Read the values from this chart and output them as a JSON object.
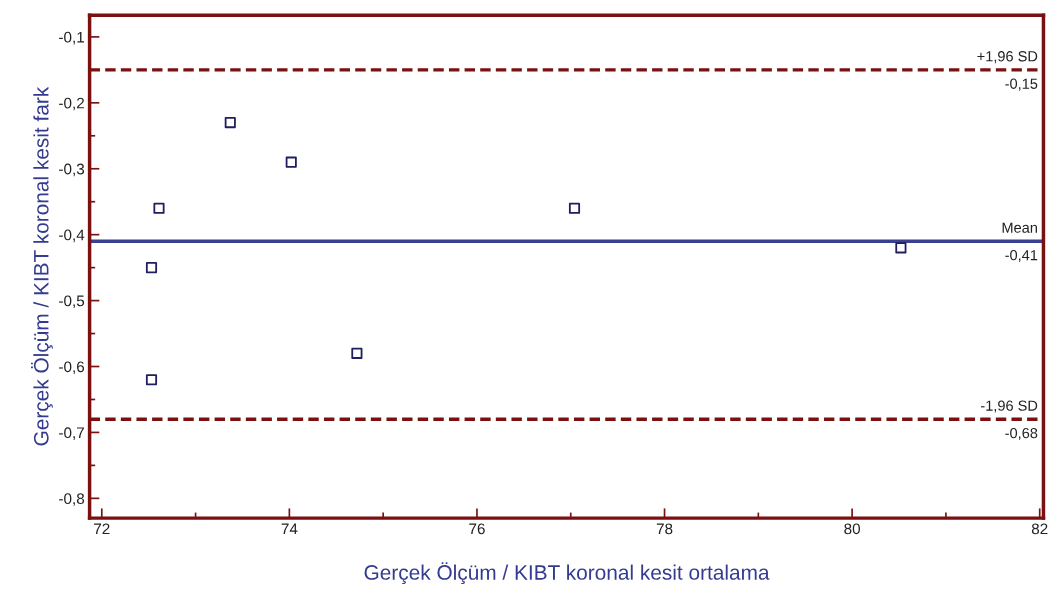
{
  "chart_data": {
    "type": "scatter",
    "xlabel": "Gerçek Ölçüm / KIBT koronal kesit ortalama",
    "ylabel": "Gerçek Ölçüm / KIBT koronal kesit fark",
    "x": [
      72.61,
      73.37,
      74.02,
      72.53,
      77.04,
      80.52,
      74.72,
      72.53
    ],
    "series": [
      {
        "color": "#1f1f5f",
        "values": [
          -0.36,
          -0.23,
          -0.29,
          -0.45,
          -0.36,
          -0.42,
          -0.58,
          -0.62
        ]
      }
    ],
    "marker": "square",
    "xlim": [
      71.87,
      82.04
    ],
    "ylim": [
      -0.83,
      -0.067
    ],
    "xticks": [
      72,
      {
        "value": 73,
        "label": null
      },
      74,
      {
        "value": 75,
        "label": null
      },
      76,
      {
        "value": 77,
        "label": null
      },
      78,
      {
        "value": 79,
        "label": null
      },
      80,
      {
        "value": 81,
        "label": null
      },
      82
    ],
    "yticks": [
      {
        "value": -0.1,
        "label": "-0,1"
      },
      {
        "value": -0.15,
        "label": null
      },
      {
        "value": -0.2,
        "label": "-0,2"
      },
      {
        "value": -0.25,
        "label": null
      },
      {
        "value": -0.3,
        "label": "-0,3"
      },
      {
        "value": -0.35,
        "label": null
      },
      {
        "value": -0.4,
        "label": "-0,4"
      },
      {
        "value": -0.45,
        "label": null
      },
      {
        "value": -0.5,
        "label": "-0,5"
      },
      {
        "value": -0.55,
        "label": null
      },
      {
        "value": -0.6,
        "label": "-0,6"
      },
      {
        "value": -0.65,
        "label": null
      },
      {
        "value": -0.7,
        "label": "-0,7"
      },
      {
        "value": -0.75,
        "label": null
      },
      {
        "value": -0.8,
        "label": "-0,8"
      }
    ],
    "ref_lines": [
      {
        "axis": "y",
        "value": -0.15,
        "label": "+1,96 SD",
        "color": "#7b1010",
        "line_style": "dashed"
      },
      {
        "axis": "y",
        "value": -0.41,
        "label": "Mean",
        "color": "#3a3f8f",
        "line_style": "solid"
      },
      {
        "axis": "y",
        "value": -0.68,
        "label": "-1,96 SD",
        "color": "#7b1010",
        "line_style": "dashed"
      }
    ],
    "annotations": [
      {
        "text": "-0,15",
        "y": -0.15
      },
      {
        "text": "-0,41",
        "y": -0.41
      },
      {
        "text": "-0,68",
        "y": -0.68
      }
    ],
    "grid": false,
    "legend": false
  }
}
